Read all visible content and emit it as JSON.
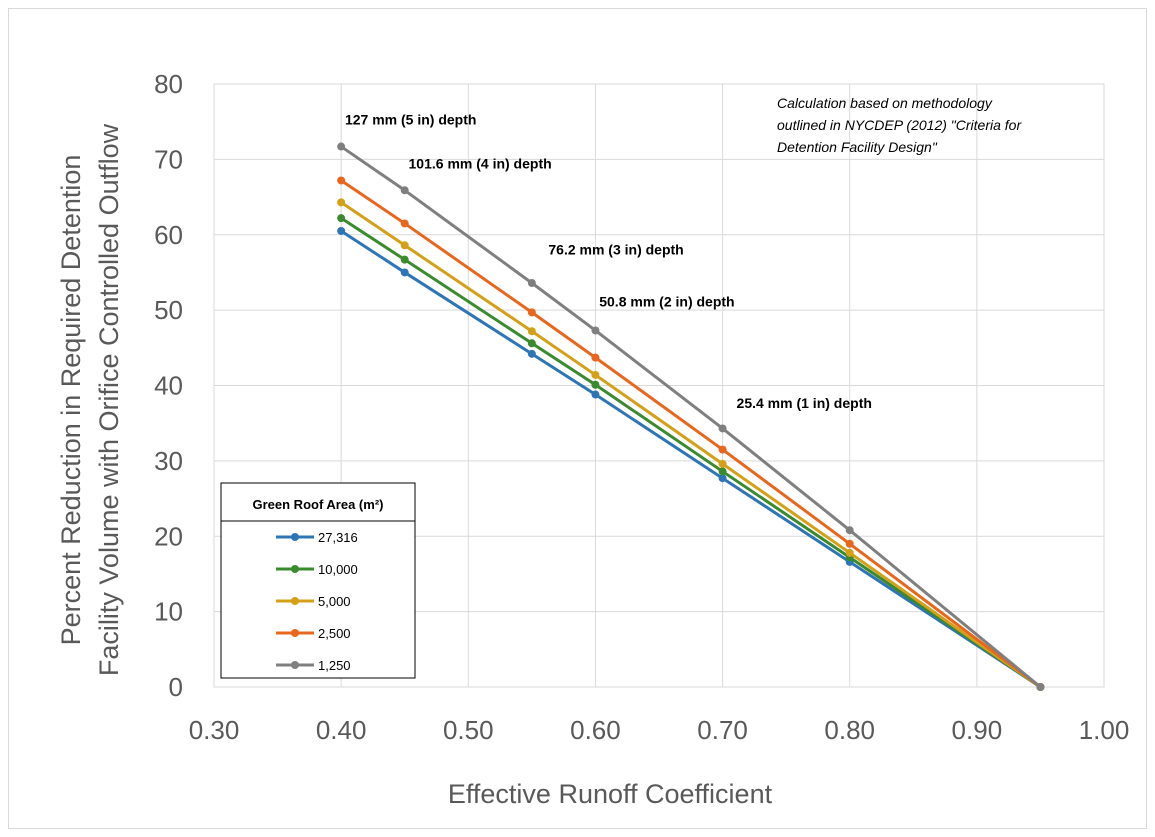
{
  "chart_data": {
    "type": "line",
    "xlabel": "Effective Runoff Coefficient",
    "ylabel_lines": [
      "Percent Reduction in Required Detention",
      "Facility Volume with Orifice Controlled Outflow"
    ],
    "xlim": [
      0.3,
      1.0
    ],
    "ylim": [
      0,
      80
    ],
    "x_ticks": [
      "0.30",
      "0.40",
      "0.50",
      "0.60",
      "0.70",
      "0.80",
      "0.90",
      "1.00"
    ],
    "y_ticks": [
      "0",
      "10",
      "20",
      "30",
      "40",
      "50",
      "60",
      "70",
      "80"
    ],
    "grid": true,
    "x": [
      0.4,
      0.45,
      0.55,
      0.6,
      0.7,
      0.8,
      0.95
    ],
    "legend": {
      "title": "Green Roof Area (m²)",
      "placement": "bottom-left"
    },
    "series": [
      {
        "name": "27,316",
        "color": "#2E75B6",
        "values": [
          60.5,
          55.0,
          44.2,
          38.8,
          27.7,
          16.6,
          0
        ]
      },
      {
        "name": "10,000",
        "color": "#3A8A2E",
        "values": [
          62.2,
          56.7,
          45.6,
          40.1,
          28.6,
          17.2,
          0
        ]
      },
      {
        "name": "5,000",
        "color": "#D4A017",
        "values": [
          64.3,
          58.6,
          47.2,
          41.4,
          29.6,
          17.8,
          0
        ]
      },
      {
        "name": "2,500",
        "color": "#E8671C",
        "values": [
          67.2,
          61.5,
          49.7,
          43.7,
          31.5,
          19.0,
          0
        ]
      },
      {
        "name": "1,250",
        "color": "#7F7F7F",
        "values": [
          71.7,
          65.9,
          53.6,
          47.3,
          34.3,
          20.8,
          0
        ]
      }
    ],
    "annotations": [
      {
        "text": "127 mm (5 in) depth",
        "x": 0.403,
        "y": 74.6
      },
      {
        "text": "101.6 mm (4 in) depth",
        "x": 0.453,
        "y": 68.8
      },
      {
        "text": "76.2 mm (3 in) depth",
        "x": 0.563,
        "y": 57.4
      },
      {
        "text": "50.8 mm (2 in) depth",
        "x": 0.603,
        "y": 50.5
      },
      {
        "text": "25.4 mm (1 in) depth",
        "x": 0.711,
        "y": 37.0
      }
    ],
    "note_lines": [
      "Calculation based on methodology",
      "outlined in NYCDEP (2012) \"Criteria for",
      "Detention Facility Design\""
    ]
  }
}
